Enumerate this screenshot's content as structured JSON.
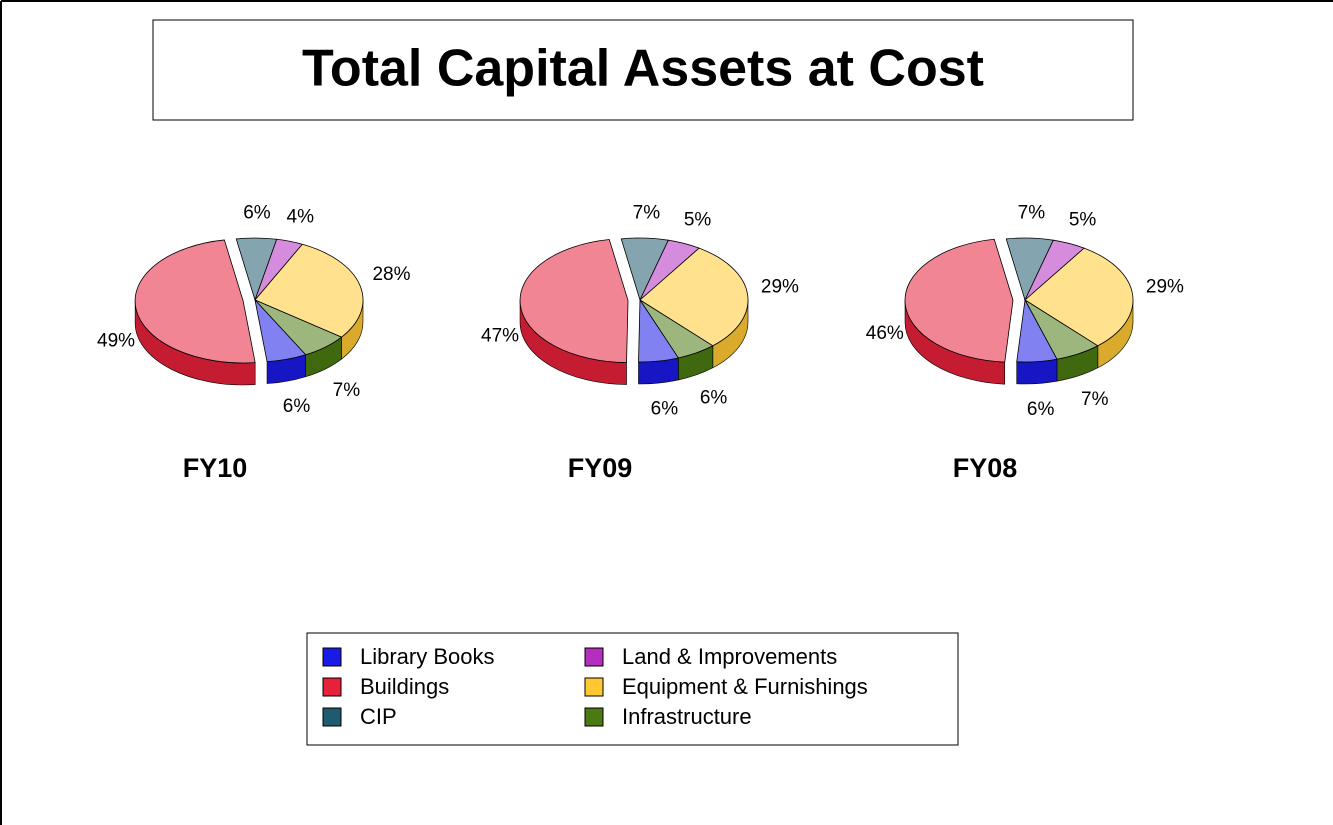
{
  "title": "Total Capital Assets at Cost",
  "legend": {
    "categories": [
      "Library Books",
      "Buildings",
      "CIP",
      "Land & Improvements",
      "Equipment & Furnishings",
      "Infrastructure"
    ],
    "colors": [
      "#1a1ae6",
      "#e8213a",
      "#1f5a6e",
      "#b42ec0",
      "#ffc832",
      "#4b7a12"
    ]
  },
  "chart_data": [
    {
      "type": "pie",
      "label": "FY10",
      "values": [
        6,
        49,
        6,
        4,
        28,
        7
      ],
      "value_labels": [
        "6%",
        "49%",
        "6%",
        "4%",
        "28%",
        "7%"
      ]
    },
    {
      "type": "pie",
      "label": "FY09",
      "values": [
        6,
        47,
        7,
        5,
        29,
        6
      ],
      "value_labels": [
        "6%",
        "47%",
        "7%",
        "5%",
        "29%",
        "6%"
      ]
    },
    {
      "type": "pie",
      "label": "FY08",
      "values": [
        6,
        46,
        7,
        5,
        29,
        7
      ],
      "value_labels": [
        "6%",
        "46%",
        "7%",
        "5%",
        "29%",
        "7%"
      ]
    }
  ]
}
